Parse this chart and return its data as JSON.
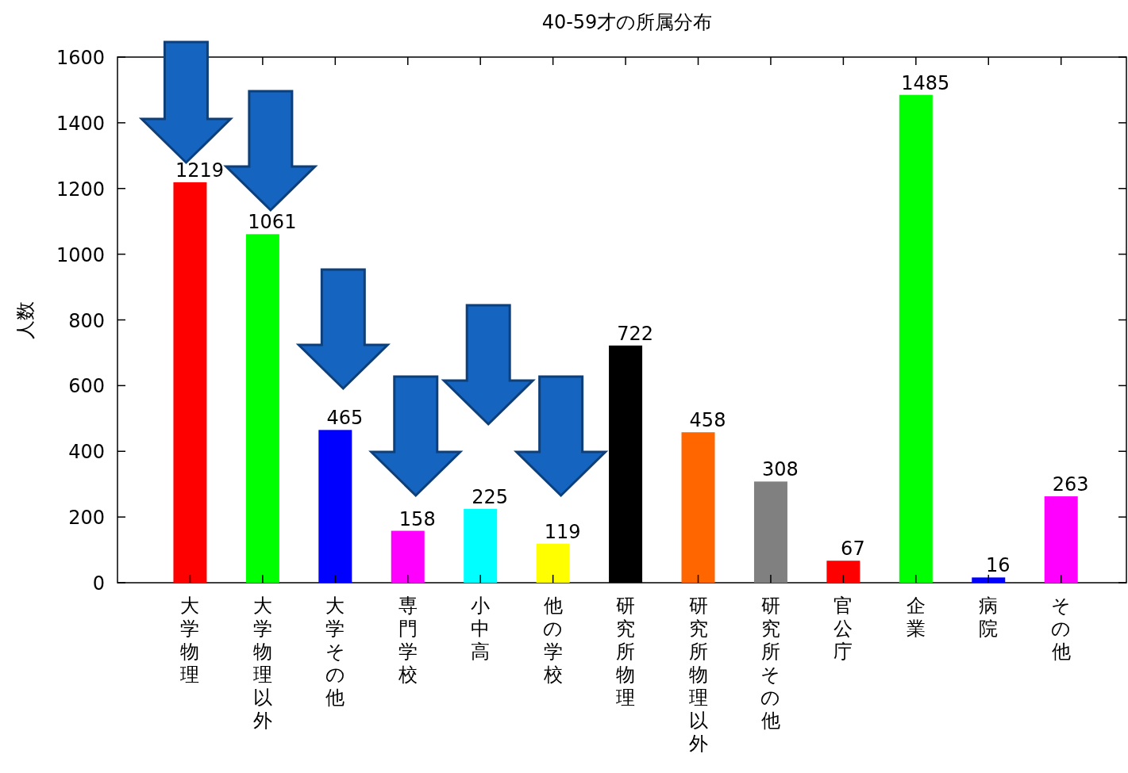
{
  "chart_data": {
    "type": "bar",
    "title": "40-59才の所属分布",
    "ylabel": "人数",
    "categories": [
      "大学物理",
      "大学物理以外",
      "大学その他",
      "専門学校",
      "小中高",
      "他の学校",
      "研究所物理",
      "研究所物理以外",
      "研究所その他",
      "官公庁",
      "企業",
      "病院",
      "その他"
    ],
    "values": [
      1219,
      1061,
      465,
      158,
      225,
      119,
      722,
      458,
      308,
      67,
      1485,
      16,
      263
    ],
    "colors": [
      "#ff0000",
      "#00ff00",
      "#0000ff",
      "#ff00ff",
      "#00ffff",
      "#ffff00",
      "#000000",
      "#ff6600",
      "#808080",
      "#ff0000",
      "#00ff00",
      "#0000ff",
      "#ff00ff"
    ],
    "ylim": [
      0,
      1600
    ],
    "yticks": [
      0,
      200,
      400,
      600,
      800,
      1000,
      1200,
      1400,
      1600
    ],
    "data_labels": true,
    "grid": false
  }
}
